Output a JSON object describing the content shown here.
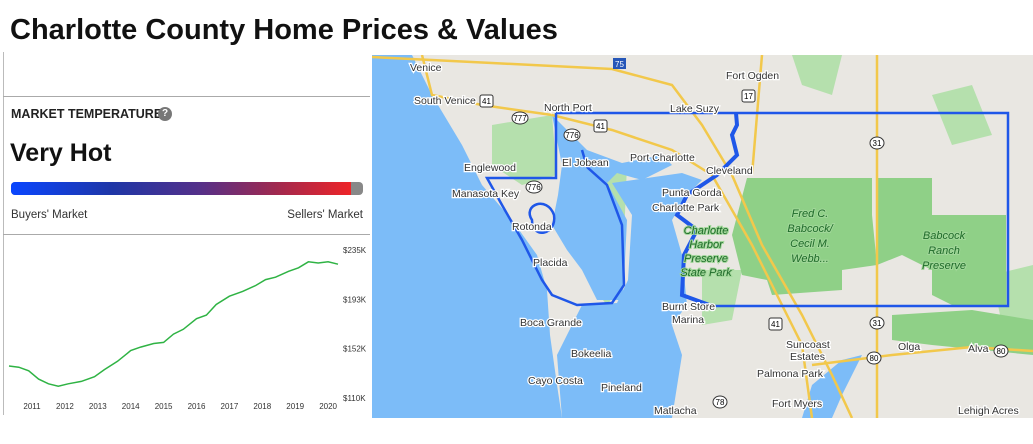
{
  "page": {
    "title": "Charlotte County Home Prices & Values"
  },
  "market": {
    "label": "MARKET TEMPERATURE",
    "help_icon": "question-circle-icon",
    "help_glyph": "?",
    "value": "Very Hot",
    "temperature_percent": 96.5,
    "left_label": "Buyers' Market",
    "right_label": "Sellers' Market",
    "colors": {
      "cold": "#0a46ff",
      "hot": "#ee2428",
      "track": "#888888"
    }
  },
  "chart_data": {
    "type": "line",
    "title": "",
    "xlabel": "",
    "ylabel": "",
    "x_ticks": [
      "2011",
      "2012",
      "2013",
      "2014",
      "2015",
      "2016",
      "2017",
      "2018",
      "2019",
      "2020"
    ],
    "y_ticks": [
      "$235K",
      "$193K",
      "$152K",
      "$110K"
    ],
    "ylim": [
      110,
      235
    ],
    "xlim": [
      2010.3,
      2020.3
    ],
    "grid": false,
    "color": "#2fb344",
    "x": [
      2010.3,
      2010.6,
      2010.9,
      2011.2,
      2011.5,
      2011.8,
      2012.1,
      2012.5,
      2012.9,
      2013.2,
      2013.6,
      2014.0,
      2014.3,
      2014.7,
      2015.0,
      2015.3,
      2015.6,
      2016.0,
      2016.3,
      2016.6,
      2017.0,
      2017.4,
      2017.8,
      2018.1,
      2018.4,
      2018.8,
      2019.1,
      2019.4,
      2019.7,
      2020.0,
      2020.3
    ],
    "y": [
      137,
      136,
      133,
      126,
      122,
      120,
      122,
      124,
      128,
      134,
      141,
      150,
      153,
      156,
      157,
      164,
      168,
      177,
      180,
      189,
      196,
      200,
      205,
      210,
      212,
      217,
      220,
      225,
      224,
      225,
      223
    ]
  },
  "map": {
    "colors": {
      "water": "#7cbcf8",
      "land": "#e9e7e2",
      "park": "#8fd087",
      "green": "#b5e0ad",
      "road": "#f2c84b",
      "boundary": "#1f57e8"
    },
    "places": [
      "Venice",
      "South Venice",
      "North Port",
      "Lake Suzy",
      "Fort Ogden",
      "Englewood",
      "Manasota Key",
      "El Jobean",
      "Port Charlotte",
      "Cleveland",
      "Punta Gorda",
      "Charlotte Park",
      "Rotonda",
      "Placida",
      "Burnt Store",
      "Marina",
      "Boca Grande",
      "Bokeelia",
      "Cayo Costa",
      "Pineland",
      "Matlacha",
      "Fort Myers",
      "Suncoast",
      "Estates",
      "Palmona Park",
      "Olga",
      "Alva",
      "Lehigh Acres"
    ],
    "parks": {
      "chpsp": [
        "Charlotte",
        "Harbor",
        "Preserve",
        "State Park"
      ],
      "webb": [
        "Fred C.",
        "Babcock/",
        "Cecil M.",
        "Webb..."
      ],
      "babcock": [
        "Babcock",
        "Ranch",
        "Preserve"
      ]
    },
    "shields": [
      "75",
      "41",
      "17",
      "777",
      "776",
      "31",
      "80",
      "78"
    ]
  }
}
